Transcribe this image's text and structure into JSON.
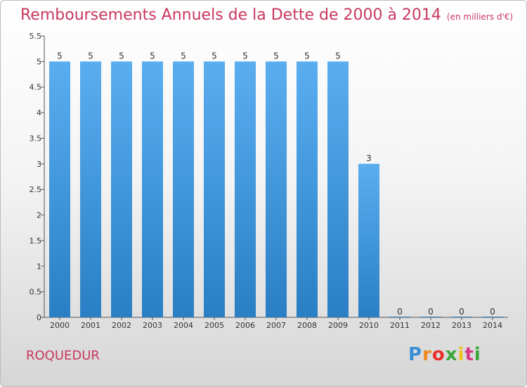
{
  "title": "Remboursements Annuels de la Dette de 2000 à 2014",
  "subtitle": "(en milliers d'€)",
  "commune": "ROQUEDUR",
  "logo": "Proxiti",
  "colors": {
    "title": "#c8385f",
    "bar_top": "#5aaef0",
    "bar_bottom": "#2a7fc4",
    "axis": "#555555"
  },
  "chart_data": {
    "type": "bar",
    "title": "Remboursements Annuels de la Dette de 2000 à 2014",
    "subtitle": "(en milliers d'€)",
    "categories": [
      "2000",
      "2001",
      "2002",
      "2003",
      "2004",
      "2005",
      "2006",
      "2007",
      "2008",
      "2009",
      "2010",
      "2011",
      "2012",
      "2013",
      "2014"
    ],
    "values": [
      5,
      5,
      5,
      5,
      5,
      5,
      5,
      5,
      5,
      5,
      3,
      0,
      0,
      0,
      0
    ],
    "data_labels": [
      "5",
      "5",
      "5",
      "5",
      "5",
      "5",
      "5",
      "5",
      "5",
      "5",
      "3",
      "0",
      "0",
      "0",
      "0"
    ],
    "yticks": [
      "0",
      "0.5",
      "1",
      "1.5",
      "2",
      "2.5",
      "3",
      "3.5",
      "4",
      "4.5",
      "5",
      "5.5"
    ],
    "ylim": [
      0,
      5.5
    ],
    "grid": false,
    "legend": "none"
  }
}
